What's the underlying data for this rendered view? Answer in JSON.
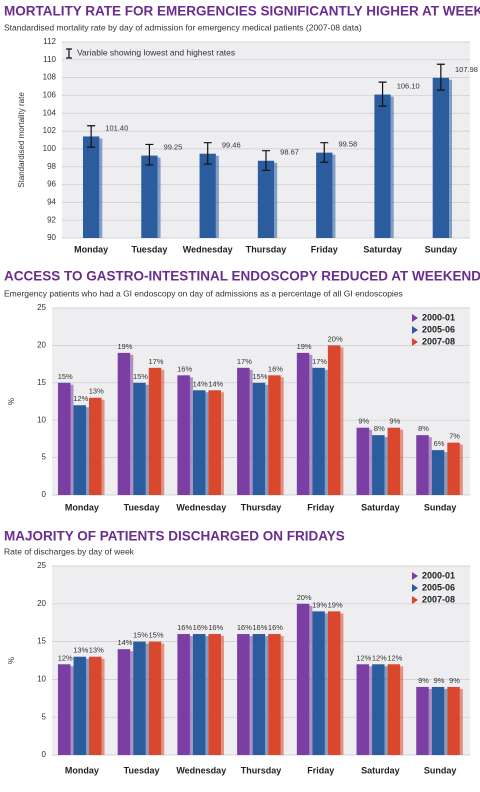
{
  "chart_data": [
    {
      "type": "bar",
      "title": "MORTALITY RATE FOR EMERGENCIES SIGNIFICANTLY HIGHER AT WEEKENDS",
      "subtitle": "Standardised mortality rate by day of admission for emergency medical patients (2007-08 data)",
      "annotation": "Variable showing lowest and highest rates",
      "y_label": "Standardised mortality rate",
      "categories": [
        "Monday",
        "Tuesday",
        "Wednesday",
        "Thursday",
        "Friday",
        "Saturday",
        "Sunday"
      ],
      "values": [
        101.4,
        99.25,
        99.46,
        98.67,
        99.58,
        106.1,
        107.98
      ],
      "value_labels": [
        "101.40",
        "99.25",
        "99.46",
        "98.67",
        "99.58",
        "106.10",
        "107.98"
      ],
      "lows": [
        100.2,
        98.2,
        98.3,
        97.6,
        98.5,
        104.8,
        106.6
      ],
      "highs": [
        102.6,
        100.5,
        100.7,
        99.8,
        100.7,
        107.5,
        109.5
      ],
      "color": "#2b5d9e",
      "ylim": [
        90,
        112
      ],
      "yticks": [
        90,
        92,
        94,
        96,
        98,
        100,
        102,
        104,
        106,
        108,
        110,
        112
      ],
      "grid": true
    },
    {
      "type": "bar",
      "title": "ACCESS TO GASTRO-INTESTINAL ENDOSCOPY REDUCED AT WEEKENDS",
      "subtitle": "Emergency patients who had a GI endoscopy on day of admissions as a percentage of all GI endoscopies",
      "y_label": "%",
      "categories": [
        "Monday",
        "Tuesday",
        "Wednesday",
        "Thursday",
        "Friday",
        "Saturday",
        "Sunday"
      ],
      "series": [
        {
          "name": "2000-01",
          "color": "#7b3fa3",
          "values": [
            15,
            19,
            16,
            17,
            19,
            9,
            8
          ],
          "value_labels": [
            "15%",
            "19%",
            "16%",
            "17%",
            "19%",
            "9%",
            "8%"
          ]
        },
        {
          "name": "2005-06",
          "color": "#2b5d9e",
          "values": [
            12,
            15,
            14,
            15,
            17,
            8,
            6
          ],
          "value_labels": [
            "12%",
            "15%",
            "14%",
            "15%",
            "17%",
            "8%",
            "6%"
          ]
        },
        {
          "name": "2007-08",
          "color": "#d9472c",
          "values": [
            13,
            17,
            14,
            16,
            20,
            9,
            7
          ],
          "value_labels": [
            "13%",
            "17%",
            "14%",
            "16%",
            "20%",
            "9%",
            "7%"
          ]
        }
      ],
      "ylim": [
        0,
        25
      ],
      "yticks": [
        0,
        5,
        10,
        15,
        20,
        25
      ],
      "grid": true,
      "legend": "top-right"
    },
    {
      "type": "bar",
      "title": "MAJORITY OF PATIENTS DISCHARGED ON FRIDAYS",
      "subtitle": "Rate of discharges by day of week",
      "y_label": "%",
      "categories": [
        "Monday",
        "Tuesday",
        "Wednesday",
        "Thursday",
        "Friday",
        "Saturday",
        "Sunday"
      ],
      "series": [
        {
          "name": "2000-01",
          "color": "#7b3fa3",
          "values": [
            12,
            14,
            16,
            16,
            20,
            12,
            9
          ],
          "value_labels": [
            "12%",
            "14%",
            "16%",
            "16%",
            "20%",
            "12%",
            "9%"
          ]
        },
        {
          "name": "2005-06",
          "color": "#2b5d9e",
          "values": [
            13,
            15,
            16,
            16,
            19,
            12,
            9
          ],
          "value_labels": [
            "13%",
            "15%",
            "16%",
            "16%",
            "19%",
            "12%",
            "9%"
          ]
        },
        {
          "name": "2007-08",
          "color": "#d9472c",
          "values": [
            13,
            15,
            16,
            16,
            19,
            12,
            9
          ],
          "value_labels": [
            "13%",
            "15%",
            "16%",
            "16%",
            "19%",
            "12%",
            "9%"
          ]
        }
      ],
      "ylim": [
        0,
        25
      ],
      "yticks": [
        0,
        5,
        10,
        15,
        20,
        25
      ],
      "grid": true,
      "legend": "top-right"
    }
  ]
}
